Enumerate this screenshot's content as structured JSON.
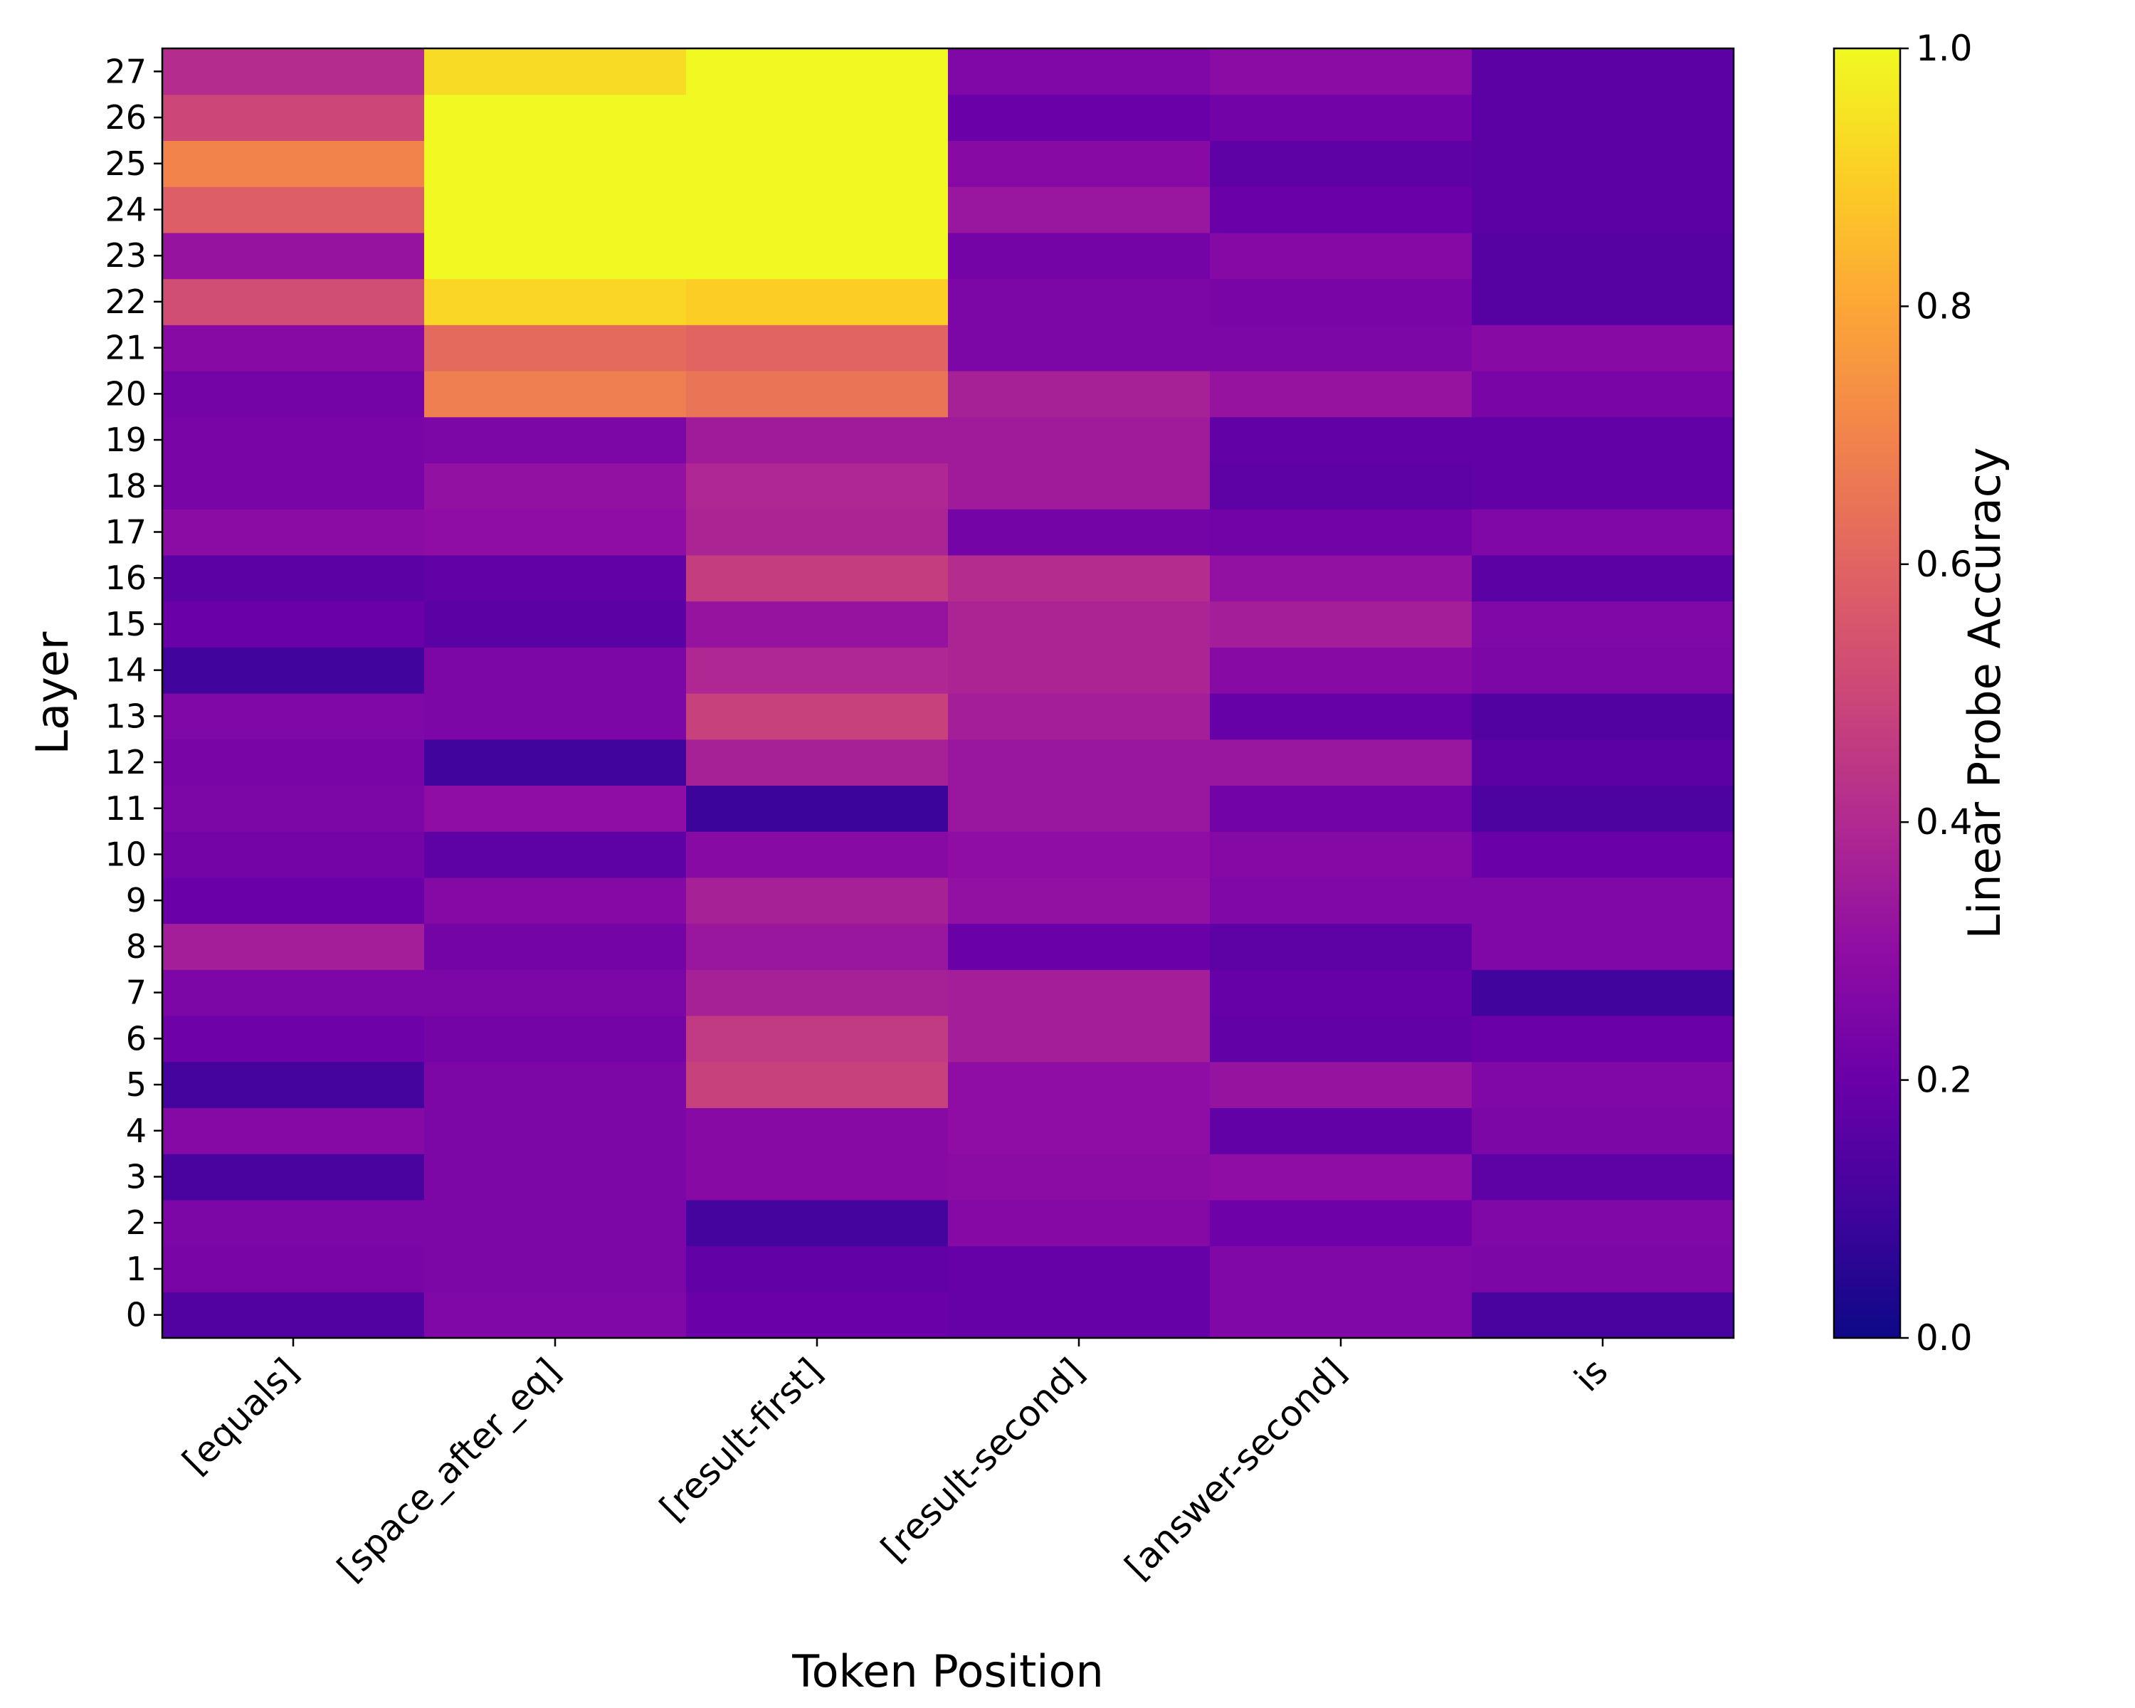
{
  "chart_data": {
    "type": "heatmap",
    "xlabel": "Token Position",
    "ylabel": "Layer",
    "colorbar_label": "Linear Probe Accuracy",
    "colormap": "plasma",
    "vmin": 0.0,
    "vmax": 1.0,
    "colorbar_ticks": [
      "0.0",
      "0.2",
      "0.4",
      "0.6",
      "0.8",
      "1.0"
    ],
    "x_categories": [
      "[equals]",
      "[space_after_eq]",
      "[result-first]",
      "[result-second]",
      "[answer-second]",
      "is"
    ],
    "y_categories": [
      "0",
      "1",
      "2",
      "3",
      "4",
      "5",
      "6",
      "7",
      "8",
      "9",
      "10",
      "11",
      "12",
      "13",
      "14",
      "15",
      "16",
      "17",
      "18",
      "19",
      "20",
      "21",
      "22",
      "23",
      "24",
      "25",
      "26",
      "27"
    ],
    "values": [
      [
        0.14,
        0.26,
        0.2,
        0.19,
        0.26,
        0.12
      ],
      [
        0.24,
        0.25,
        0.18,
        0.19,
        0.26,
        0.25
      ],
      [
        0.25,
        0.25,
        0.11,
        0.27,
        0.21,
        0.26
      ],
      [
        0.12,
        0.25,
        0.28,
        0.29,
        0.3,
        0.17
      ],
      [
        0.27,
        0.25,
        0.28,
        0.3,
        0.18,
        0.25
      ],
      [
        0.11,
        0.25,
        0.48,
        0.3,
        0.32,
        0.26
      ],
      [
        0.21,
        0.23,
        0.46,
        0.36,
        0.18,
        0.2
      ],
      [
        0.25,
        0.25,
        0.37,
        0.36,
        0.19,
        0.1
      ],
      [
        0.36,
        0.23,
        0.33,
        0.2,
        0.17,
        0.26
      ],
      [
        0.2,
        0.27,
        0.37,
        0.31,
        0.26,
        0.26
      ],
      [
        0.23,
        0.17,
        0.28,
        0.3,
        0.27,
        0.2
      ],
      [
        0.25,
        0.3,
        0.09,
        0.33,
        0.22,
        0.13
      ],
      [
        0.24,
        0.1,
        0.37,
        0.33,
        0.33,
        0.16
      ],
      [
        0.26,
        0.25,
        0.48,
        0.36,
        0.19,
        0.14
      ],
      [
        0.1,
        0.25,
        0.39,
        0.38,
        0.28,
        0.25
      ],
      [
        0.2,
        0.16,
        0.32,
        0.38,
        0.36,
        0.26
      ],
      [
        0.16,
        0.18,
        0.47,
        0.41,
        0.31,
        0.16
      ],
      [
        0.29,
        0.3,
        0.38,
        0.23,
        0.22,
        0.26
      ],
      [
        0.24,
        0.31,
        0.39,
        0.35,
        0.17,
        0.18
      ],
      [
        0.24,
        0.25,
        0.35,
        0.35,
        0.18,
        0.18
      ],
      [
        0.23,
        0.68,
        0.65,
        0.37,
        0.32,
        0.24
      ],
      [
        0.28,
        0.62,
        0.6,
        0.25,
        0.25,
        0.28
      ],
      [
        0.52,
        0.92,
        0.9,
        0.25,
        0.24,
        0.15
      ],
      [
        0.32,
        1.0,
        1.0,
        0.23,
        0.27,
        0.15
      ],
      [
        0.58,
        1.0,
        1.0,
        0.33,
        0.2,
        0.16
      ],
      [
        0.7,
        1.0,
        1.0,
        0.28,
        0.17,
        0.16
      ],
      [
        0.5,
        1.0,
        1.0,
        0.2,
        0.22,
        0.16
      ],
      [
        0.41,
        0.93,
        1.0,
        0.26,
        0.29,
        0.16
      ]
    ]
  }
}
